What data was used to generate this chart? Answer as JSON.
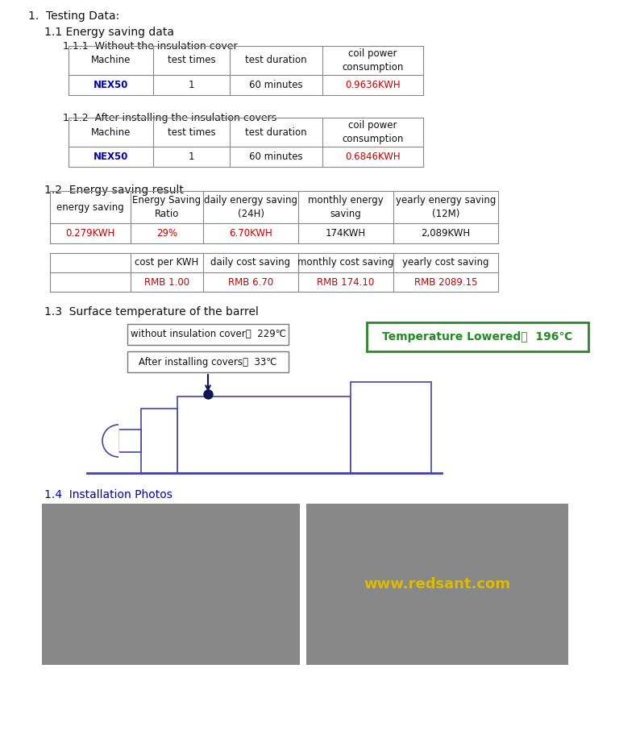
{
  "bg_color": "#ffffff",
  "section1_title": "1.  Testing Data:",
  "section11_title": "1.1 Energy saving data",
  "section111_title": "1.1.1  Without the insulation cover",
  "table1_headers": [
    "Machine",
    "test times",
    "test duration",
    "coil power\nconsumption"
  ],
  "table1_row": [
    "NEX50",
    "1",
    "60 minutes",
    "0.9636KWH"
  ],
  "section112_title": "1.1.2  After installing the insulation covers",
  "table2_headers": [
    "Machine",
    "test times",
    "test duration",
    "coil power\nconsumption"
  ],
  "table2_row": [
    "NEX50",
    "1",
    "60 minutes",
    "0.6846KWH"
  ],
  "section12_title": "1.2  Energy saving result",
  "table3_headers": [
    "energy saving",
    "Energy Saving\nRatio",
    "daily energy saving\n(24H)",
    "monthly energy\nsaving",
    "yearly energy saving\n(12M)"
  ],
  "table3_row": [
    "0.279KWH",
    "29%",
    "6.70KWH",
    "174KWH",
    "2,089KWH"
  ],
  "table4_headers": [
    "",
    "cost per KWH",
    "daily cost saving",
    "monthly cost saving",
    "yearly cost saving"
  ],
  "table4_row": [
    "",
    "RMB 1.00",
    "RMB 6.70",
    "RMB 174.10",
    "RMB 2089.15"
  ],
  "section13_title": "1.3  Surface temperature of the barrel",
  "temp_without": "without insulation cover：  229℃",
  "temp_after": "After installing covers：  33℃",
  "temp_lowered_label": "Temperature Lowered：  196℃",
  "section14_title": "1.4  Installation Photos",
  "red_color": "#cc0000",
  "blue_color": "#0000bb",
  "green_color": "#228B22",
  "dark_color": "#111111",
  "border_color": "#888888",
  "machine_color": "#4444aa",
  "highlight_box_border": "#228B22",
  "photo_bg": "#888888",
  "watermark_color": "#ddbb00"
}
